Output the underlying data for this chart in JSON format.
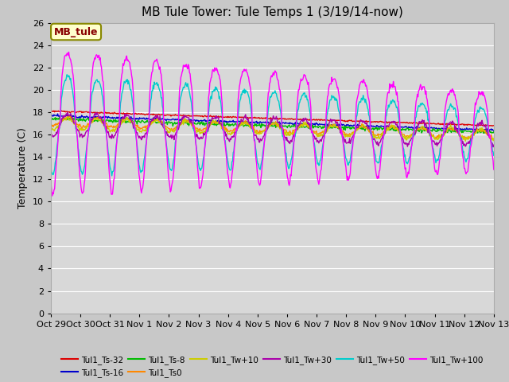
{
  "title": "MB Tule Tower: Tule Temps 1 (3/19/14-now)",
  "ylabel": "Temperature (C)",
  "xlim": [
    0,
    15
  ],
  "ylim": [
    0,
    26
  ],
  "yticks": [
    0,
    2,
    4,
    6,
    8,
    10,
    12,
    14,
    16,
    18,
    20,
    22,
    24,
    26
  ],
  "xtick_labels": [
    "Oct 29",
    "Oct 30",
    "Oct 31",
    "Nov 1",
    "Nov 2",
    "Nov 3",
    "Nov 4",
    "Nov 5",
    "Nov 6",
    "Nov 7",
    "Nov 8",
    "Nov 9",
    "Nov 10",
    "Nov 11",
    "Nov 12",
    "Nov 13"
  ],
  "xtick_positions": [
    0,
    1,
    2,
    3,
    4,
    5,
    6,
    7,
    8,
    9,
    10,
    11,
    12,
    13,
    14,
    15
  ],
  "bg_color": "#c8c8c8",
  "plot_bg_color": "#d8d8d8",
  "grid_color": "#ffffff",
  "colors": {
    "Tul1_Ts-32": "#dd0000",
    "Tul1_Ts-16": "#0000cc",
    "Tul1_Ts-8": "#00bb00",
    "Tul1_Ts0": "#ff8800",
    "Tul1_Tw+10": "#cccc00",
    "Tul1_Tw+30": "#aa00aa",
    "Tul1_Tw+50": "#00cccc",
    "Tul1_Tw+100": "#ff00ff"
  },
  "legend_label": "MB_tule",
  "legend_box_color": "#ffffcc",
  "legend_text_color": "#880000",
  "legend_border_color": "#888800",
  "title_fontsize": 11,
  "ylabel_fontsize": 9,
  "tick_fontsize": 8
}
